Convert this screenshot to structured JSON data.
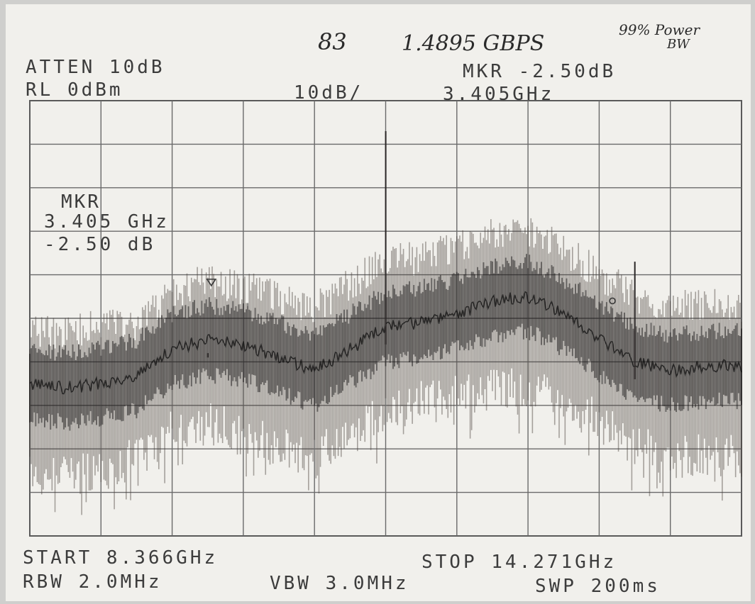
{
  "handwriting": {
    "number": "83",
    "rate": "1.4895 GBPS",
    "note_line1": "99% Power",
    "note_line2": "BW"
  },
  "header": {
    "atten": "ATTEN 10dB",
    "ref_level": "RL 0dBm",
    "scale": "10dB/",
    "marker_readout": "MKR -2.50dB",
    "marker_freq": "3.405GHz"
  },
  "marker_box": {
    "title": "MKR",
    "freq": "3.405 GHz",
    "level": "-2.50 dB"
  },
  "footer": {
    "start": "START 8.366GHz",
    "stop": "STOP 14.271GHz",
    "rbw": "RBW 2.0MHz",
    "vbw": "VBW 3.0MHz",
    "sweep": "SWP 200ms"
  },
  "chart_data": {
    "type": "line",
    "x_unit": "GHz",
    "y_unit": "dBm",
    "xlim": [
      8.366,
      14.271
    ],
    "ylim": [
      -100,
      0
    ],
    "grid": true,
    "x": [
      8.366,
      8.661,
      8.957,
      9.252,
      9.547,
      9.843,
      10.138,
      10.433,
      10.728,
      11.024,
      11.319,
      11.614,
      11.909,
      12.205,
      12.5,
      12.795,
      13.09,
      13.386,
      13.681,
      13.976,
      14.271
    ],
    "series": [
      {
        "name": "peak",
        "values": [
          -53,
          -53,
          -52,
          -51,
          -45,
          -41,
          -43,
          -45,
          -48,
          -42,
          -37,
          -36,
          -34,
          -31,
          -30,
          -34,
          -40,
          -45,
          -47,
          -47,
          -47
        ]
      },
      {
        "name": "average",
        "values": [
          -65,
          -66,
          -65,
          -63,
          -57,
          -55,
          -56,
          -59,
          -62,
          -57,
          -52,
          -51,
          -49,
          -46,
          -45,
          -49,
          -55,
          -60,
          -62,
          -61,
          -61
        ]
      },
      {
        "name": "floor",
        "values": [
          -86,
          -86,
          -85,
          -82,
          -76,
          -74,
          -76,
          -80,
          -82,
          -77,
          -71,
          -69,
          -68,
          -66,
          -66,
          -69,
          -74,
          -79,
          -82,
          -81,
          -82
        ]
      }
    ],
    "spikes": [
      {
        "x": 11.319,
        "y": -7
      },
      {
        "x": 13.386,
        "y": -37
      },
      {
        "x": 9.843,
        "y": -58
      }
    ],
    "markers": [
      {
        "symbol": "triangle",
        "x": 9.872,
        "y": -42
      },
      {
        "symbol": "circle",
        "x": 13.2,
        "y": -46
      }
    ]
  }
}
